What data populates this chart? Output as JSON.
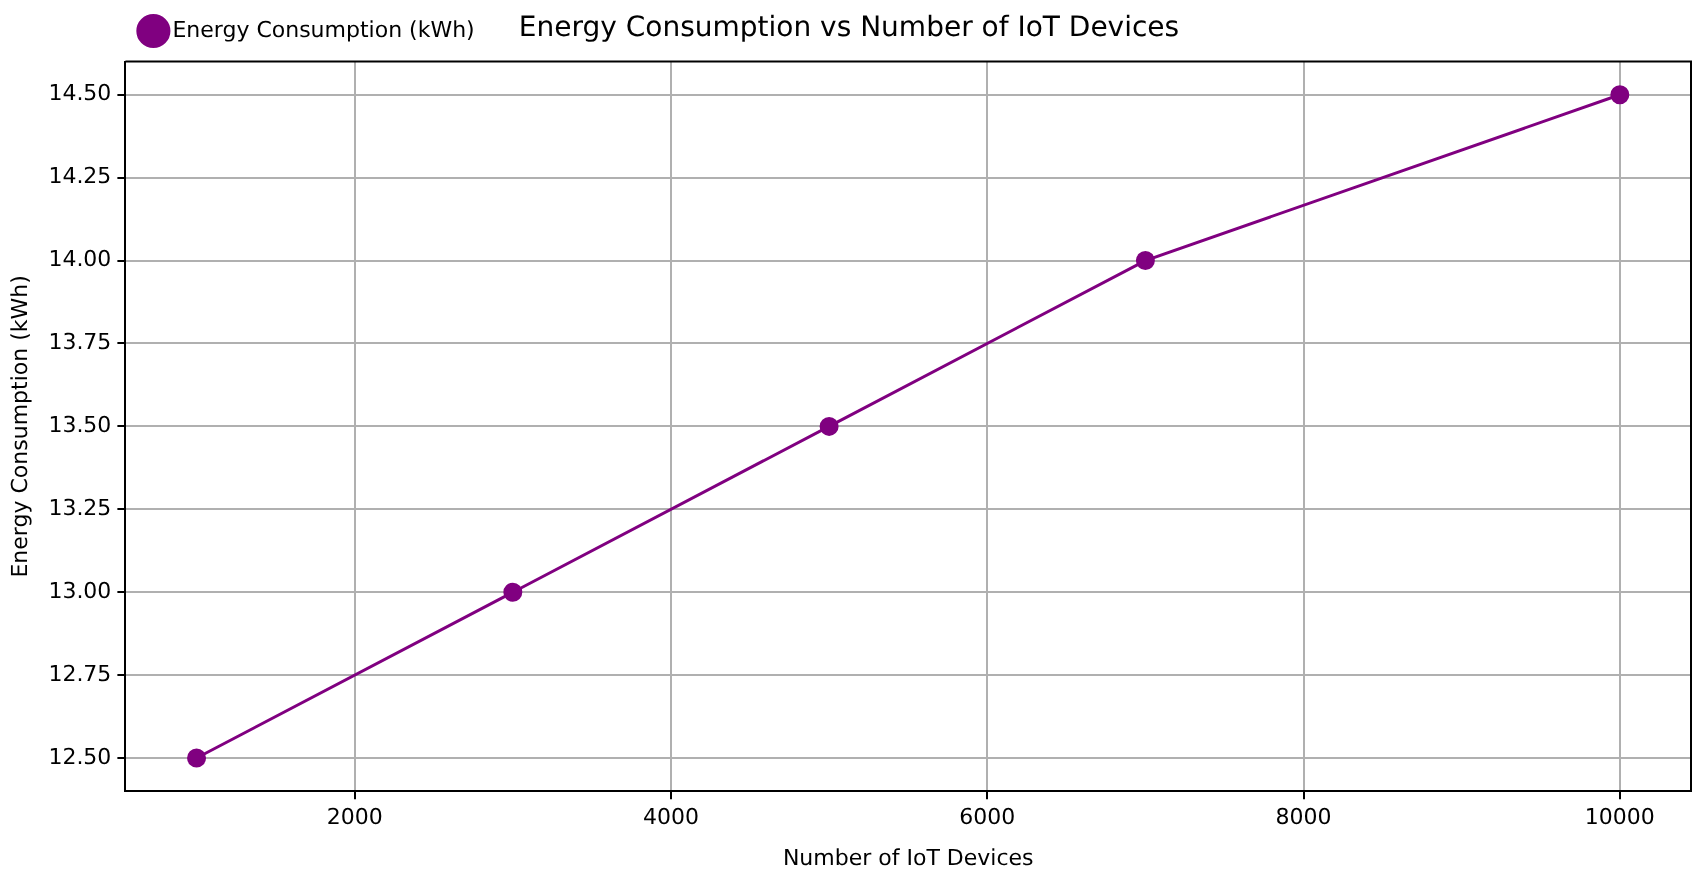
{
  "chart_data": {
    "type": "line",
    "title": "Energy Consumption vs Number of IoT Devices",
    "xlabel": "Number of IoT Devices",
    "ylabel": "Energy Consumption (kWh)",
    "x": [
      1000,
      3000,
      5000,
      7000,
      10000
    ],
    "series": [
      {
        "name": "Energy Consumption (kWh)",
        "color": "#800080",
        "values": [
          12.5,
          13,
          13.5,
          14,
          14.5
        ]
      }
    ],
    "xlim": [
      550,
      10450
    ],
    "xticks": [
      2000,
      4000,
      6000,
      8000,
      10000
    ],
    "ylim": [
      12.4,
      14.6
    ],
    "yticks": [
      {
        "value": 12.5,
        "label": "12.50"
      },
      {
        "value": 12.75,
        "label": "12.75"
      },
      {
        "value": 13,
        "label": "13.00"
      },
      {
        "value": 13.25,
        "label": "13.25"
      },
      {
        "value": 13.5,
        "label": "13.50"
      },
      {
        "value": 13.75,
        "label": "13.75"
      },
      {
        "value": 14,
        "label": "14.00"
      },
      {
        "value": 14.25,
        "label": "14.25"
      },
      {
        "value": 14.5,
        "label": "14.50"
      }
    ],
    "grid": true,
    "legend": "top left",
    "marker": "circle",
    "line_style": "solid"
  }
}
